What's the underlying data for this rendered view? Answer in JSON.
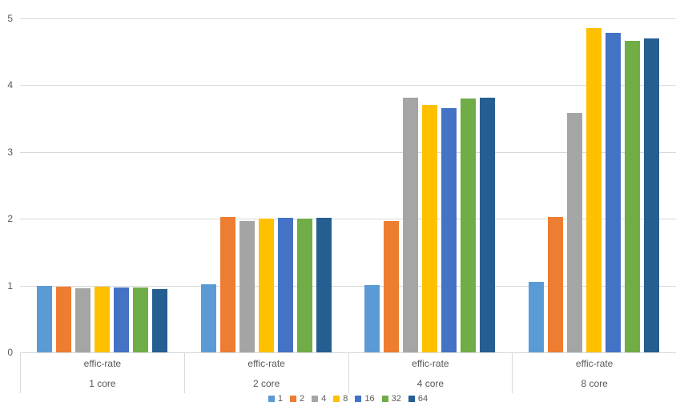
{
  "chart_data": {
    "type": "bar",
    "title": "",
    "categories": [
      "1 core",
      "2 core",
      "4 core",
      "8 core"
    ],
    "x_axis": {
      "level1": [
        "effic-rate",
        "effic-rate",
        "effic-rate",
        "effic-rate"
      ],
      "level2": [
        "1 core",
        "2 core",
        "4 core",
        "8 core"
      ]
    },
    "y_axis": {
      "ticks": [
        0,
        1,
        2,
        3,
        4,
        5
      ],
      "ylim": [
        0,
        5
      ],
      "grid": true
    },
    "legend_position": "bottom-center",
    "series": [
      {
        "name": "1",
        "color": "#5B9BD5",
        "values": [
          1.0,
          1.02,
          1.01,
          1.06
        ]
      },
      {
        "name": "2",
        "color": "#ED7D31",
        "values": [
          0.98,
          2.03,
          1.97,
          2.03
        ]
      },
      {
        "name": "4",
        "color": "#A5A5A5",
        "values": [
          0.96,
          1.97,
          3.81,
          3.59
        ]
      },
      {
        "name": "8",
        "color": "#FFC000",
        "values": [
          0.98,
          2.0,
          3.7,
          4.86
        ]
      },
      {
        "name": "16",
        "color": "#4472C4",
        "values": [
          0.97,
          2.02,
          3.66,
          4.78
        ]
      },
      {
        "name": "32",
        "color": "#70AD47",
        "values": [
          0.97,
          2.0,
          3.8,
          4.66
        ]
      },
      {
        "name": "64",
        "color": "#255E91",
        "values": [
          0.95,
          2.02,
          3.81,
          4.7
        ]
      }
    ]
  },
  "style": {
    "gridline_color": "#D9D9D9",
    "axis_text_color": "#595959",
    "background": "#FFFFFF"
  }
}
